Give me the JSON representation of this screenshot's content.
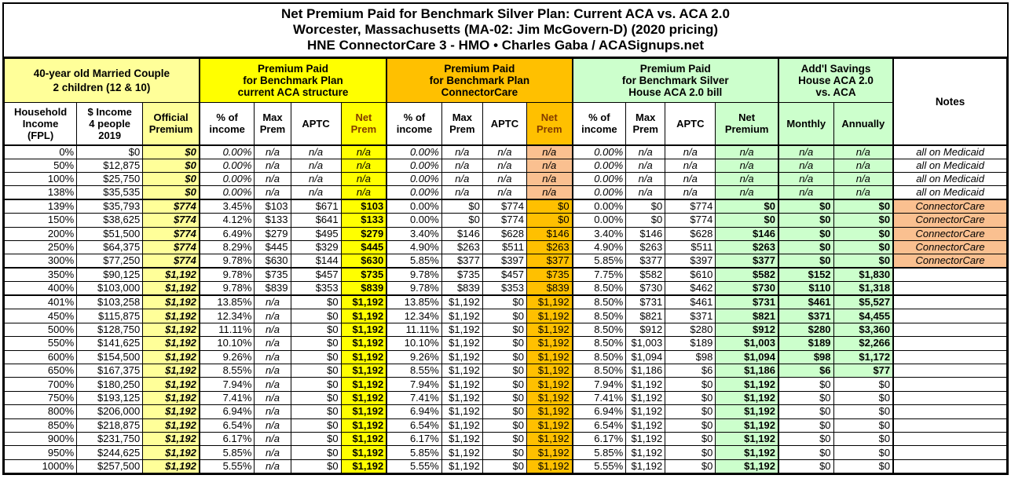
{
  "colors": {
    "light_yellow": "#FFFF99",
    "yellow": "#FFFF00",
    "orange": "#FFC000",
    "peach": "#FAC090",
    "green": "#CCFFCC",
    "net_header_text": "#833C00",
    "border": "#000000",
    "background": "#FFFFFF"
  },
  "chart_data": {
    "type": "table",
    "title_lines": [
      "Net Premium Paid for Benchmark Silver Plan: Current ACA vs. ACA 2.0",
      "Worcester, Massachusetts (MA-02: Jim McGovern-D) (2020 pricing)",
      "HNE ConnectorCare 3 - HMO • Charles Gaba / ACASignups.net"
    ],
    "corner_header_lines": [
      "40-year old Married Couple",
      "2 children (12 & 10)"
    ],
    "column_groups": [
      {
        "id": "aca",
        "label_lines": [
          "Premium Paid",
          "for Benchmark Plan",
          "current ACA structure"
        ],
        "bg": "yellow"
      },
      {
        "id": "cc",
        "label_lines": [
          "Premium Paid",
          "for Benchmark Plan",
          "ConnectorCare"
        ],
        "bg": "orange"
      },
      {
        "id": "aca2",
        "label_lines": [
          "Premium Paid",
          "for Benchmark Silver",
          "House ACA 2.0 bill"
        ],
        "bg": "green"
      },
      {
        "id": "savings",
        "label_lines": [
          "Add'l Savings",
          "House ACA 2.0",
          "vs. ACA"
        ],
        "bg": "green"
      }
    ],
    "notes_header": "Notes",
    "columns": [
      {
        "key": "fpl",
        "label_lines": [
          "Household",
          "Income",
          "(FPL)"
        ]
      },
      {
        "key": "income",
        "label_lines": [
          "$ Income",
          "4 people",
          "2019"
        ]
      },
      {
        "key": "official",
        "label_lines": [
          "Official",
          "Premium"
        ]
      },
      {
        "key": "aca_pct",
        "label_lines": [
          "% of",
          "income"
        ]
      },
      {
        "key": "aca_max",
        "label_lines": [
          "Max",
          "Prem"
        ]
      },
      {
        "key": "aca_aptc",
        "label_lines": [
          "APTC"
        ]
      },
      {
        "key": "aca_net",
        "label_lines": [
          "Net",
          "Prem"
        ]
      },
      {
        "key": "cc_pct",
        "label_lines": [
          "% of",
          "income"
        ]
      },
      {
        "key": "cc_max",
        "label_lines": [
          "Max",
          "Prem"
        ]
      },
      {
        "key": "cc_aptc",
        "label_lines": [
          "APTC"
        ]
      },
      {
        "key": "cc_net",
        "label_lines": [
          "Net",
          "Prem"
        ]
      },
      {
        "key": "a2_pct",
        "label_lines": [
          "% of",
          "income"
        ]
      },
      {
        "key": "a2_max",
        "label_lines": [
          "Max",
          "Prem"
        ]
      },
      {
        "key": "a2_aptc",
        "label_lines": [
          "APTC"
        ]
      },
      {
        "key": "a2_net",
        "label_lines": [
          "Net",
          "Premium"
        ]
      },
      {
        "key": "monthly",
        "label_lines": [
          "Monthly"
        ]
      },
      {
        "key": "annually",
        "label_lines": [
          "Annually"
        ]
      }
    ],
    "rows": [
      [
        "0%",
        "$0",
        "$0",
        "0.00%",
        "n/a",
        "n/a",
        "n/a",
        "0.00%",
        "n/a",
        "n/a",
        "n/a",
        "0.00%",
        "n/a",
        "n/a",
        "n/a",
        "n/a",
        "n/a",
        "all on Medicaid"
      ],
      [
        "50%",
        "$12,875",
        "$0",
        "0.00%",
        "n/a",
        "n/a",
        "n/a",
        "0.00%",
        "n/a",
        "n/a",
        "n/a",
        "0.00%",
        "n/a",
        "n/a",
        "n/a",
        "n/a",
        "n/a",
        "all on Medicaid"
      ],
      [
        "100%",
        "$25,750",
        "$0",
        "0.00%",
        "n/a",
        "n/a",
        "n/a",
        "0.00%",
        "n/a",
        "n/a",
        "n/a",
        "0.00%",
        "n/a",
        "n/a",
        "n/a",
        "n/a",
        "n/a",
        "all on Medicaid"
      ],
      [
        "138%",
        "$35,535",
        "$0",
        "0.00%",
        "n/a",
        "n/a",
        "n/a",
        "0.00%",
        "n/a",
        "n/a",
        "n/a",
        "0.00%",
        "n/a",
        "n/a",
        "n/a",
        "n/a",
        "n/a",
        "all on Medicaid"
      ],
      [
        "139%",
        "$35,793",
        "$774",
        "3.45%",
        "$103",
        "$671",
        "$103",
        "0.00%",
        "$0",
        "$774",
        "$0",
        "0.00%",
        "$0",
        "$774",
        "$0",
        "$0",
        "$0",
        "ConnectorCare"
      ],
      [
        "150%",
        "$38,625",
        "$774",
        "4.12%",
        "$133",
        "$641",
        "$133",
        "0.00%",
        "$0",
        "$774",
        "$0",
        "0.00%",
        "$0",
        "$774",
        "$0",
        "$0",
        "$0",
        "ConnectorCare"
      ],
      [
        "200%",
        "$51,500",
        "$774",
        "6.49%",
        "$279",
        "$495",
        "$279",
        "3.40%",
        "$146",
        "$628",
        "$146",
        "3.40%",
        "$146",
        "$628",
        "$146",
        "$0",
        "$0",
        "ConnectorCare"
      ],
      [
        "250%",
        "$64,375",
        "$774",
        "8.29%",
        "$445",
        "$329",
        "$445",
        "4.90%",
        "$263",
        "$511",
        "$263",
        "4.90%",
        "$263",
        "$511",
        "$263",
        "$0",
        "$0",
        "ConnectorCare"
      ],
      [
        "300%",
        "$77,250",
        "$774",
        "9.78%",
        "$630",
        "$144",
        "$630",
        "5.85%",
        "$377",
        "$397",
        "$377",
        "5.85%",
        "$377",
        "$397",
        "$377",
        "$0",
        "$0",
        "ConnectorCare"
      ],
      [
        "350%",
        "$90,125",
        "$1,192",
        "9.78%",
        "$735",
        "$457",
        "$735",
        "9.78%",
        "$735",
        "$457",
        "$735",
        "7.75%",
        "$582",
        "$610",
        "$582",
        "$152",
        "$1,830",
        ""
      ],
      [
        "400%",
        "$103,000",
        "$1,192",
        "9.78%",
        "$839",
        "$353",
        "$839",
        "9.78%",
        "$839",
        "$353",
        "$839",
        "8.50%",
        "$730",
        "$462",
        "$730",
        "$110",
        "$1,318",
        ""
      ],
      [
        "401%",
        "$103,258",
        "$1,192",
        "13.85%",
        "n/a",
        "$0",
        "$1,192",
        "13.85%",
        "$1,192",
        "$0",
        "$1,192",
        "8.50%",
        "$731",
        "$461",
        "$731",
        "$461",
        "$5,527",
        ""
      ],
      [
        "450%",
        "$115,875",
        "$1,192",
        "12.34%",
        "n/a",
        "$0",
        "$1,192",
        "12.34%",
        "$1,192",
        "$0",
        "$1,192",
        "8.50%",
        "$821",
        "$371",
        "$821",
        "$371",
        "$4,455",
        ""
      ],
      [
        "500%",
        "$128,750",
        "$1,192",
        "11.11%",
        "n/a",
        "$0",
        "$1,192",
        "11.11%",
        "$1,192",
        "$0",
        "$1,192",
        "8.50%",
        "$912",
        "$280",
        "$912",
        "$280",
        "$3,360",
        ""
      ],
      [
        "550%",
        "$141,625",
        "$1,192",
        "10.10%",
        "n/a",
        "$0",
        "$1,192",
        "10.10%",
        "$1,192",
        "$0",
        "$1,192",
        "8.50%",
        "$1,003",
        "$189",
        "$1,003",
        "$189",
        "$2,266",
        ""
      ],
      [
        "600%",
        "$154,500",
        "$1,192",
        "9.26%",
        "n/a",
        "$0",
        "$1,192",
        "9.26%",
        "$1,192",
        "$0",
        "$1,192",
        "8.50%",
        "$1,094",
        "$98",
        "$1,094",
        "$98",
        "$1,172",
        ""
      ],
      [
        "650%",
        "$167,375",
        "$1,192",
        "8.55%",
        "n/a",
        "$0",
        "$1,192",
        "8.55%",
        "$1,192",
        "$0",
        "$1,192",
        "8.50%",
        "$1,186",
        "$6",
        "$1,186",
        "$6",
        "$77",
        ""
      ],
      [
        "700%",
        "$180,250",
        "$1,192",
        "7.94%",
        "n/a",
        "$0",
        "$1,192",
        "7.94%",
        "$1,192",
        "$0",
        "$1,192",
        "7.94%",
        "$1,192",
        "$0",
        "$1,192",
        "$0",
        "$0",
        ""
      ],
      [
        "750%",
        "$193,125",
        "$1,192",
        "7.41%",
        "n/a",
        "$0",
        "$1,192",
        "7.41%",
        "$1,192",
        "$0",
        "$1,192",
        "7.41%",
        "$1,192",
        "$0",
        "$1,192",
        "$0",
        "$0",
        ""
      ],
      [
        "800%",
        "$206,000",
        "$1,192",
        "6.94%",
        "n/a",
        "$0",
        "$1,192",
        "6.94%",
        "$1,192",
        "$0",
        "$1,192",
        "6.94%",
        "$1,192",
        "$0",
        "$1,192",
        "$0",
        "$0",
        ""
      ],
      [
        "850%",
        "$218,875",
        "$1,192",
        "6.54%",
        "n/a",
        "$0",
        "$1,192",
        "6.54%",
        "$1,192",
        "$0",
        "$1,192",
        "6.54%",
        "$1,192",
        "$0",
        "$1,192",
        "$0",
        "$0",
        ""
      ],
      [
        "900%",
        "$231,750",
        "$1,192",
        "6.17%",
        "n/a",
        "$0",
        "$1,192",
        "6.17%",
        "$1,192",
        "$0",
        "$1,192",
        "6.17%",
        "$1,192",
        "$0",
        "$1,192",
        "$0",
        "$0",
        ""
      ],
      [
        "950%",
        "$244,625",
        "$1,192",
        "5.85%",
        "n/a",
        "$0",
        "$1,192",
        "5.85%",
        "$1,192",
        "$0",
        "$1,192",
        "5.85%",
        "$1,192",
        "$0",
        "$1,192",
        "$0",
        "$0",
        ""
      ],
      [
        "1000%",
        "$257,500",
        "$1,192",
        "5.55%",
        "n/a",
        "$0",
        "$1,192",
        "5.55%",
        "$1,192",
        "$0",
        "$1,192",
        "5.55%",
        "$1,192",
        "$0",
        "$1,192",
        "$0",
        "$0",
        ""
      ]
    ],
    "row_notes_legend": {
      "medicaid_note": "all on Medicaid",
      "connectorcare_note": "ConnectorCare"
    }
  }
}
